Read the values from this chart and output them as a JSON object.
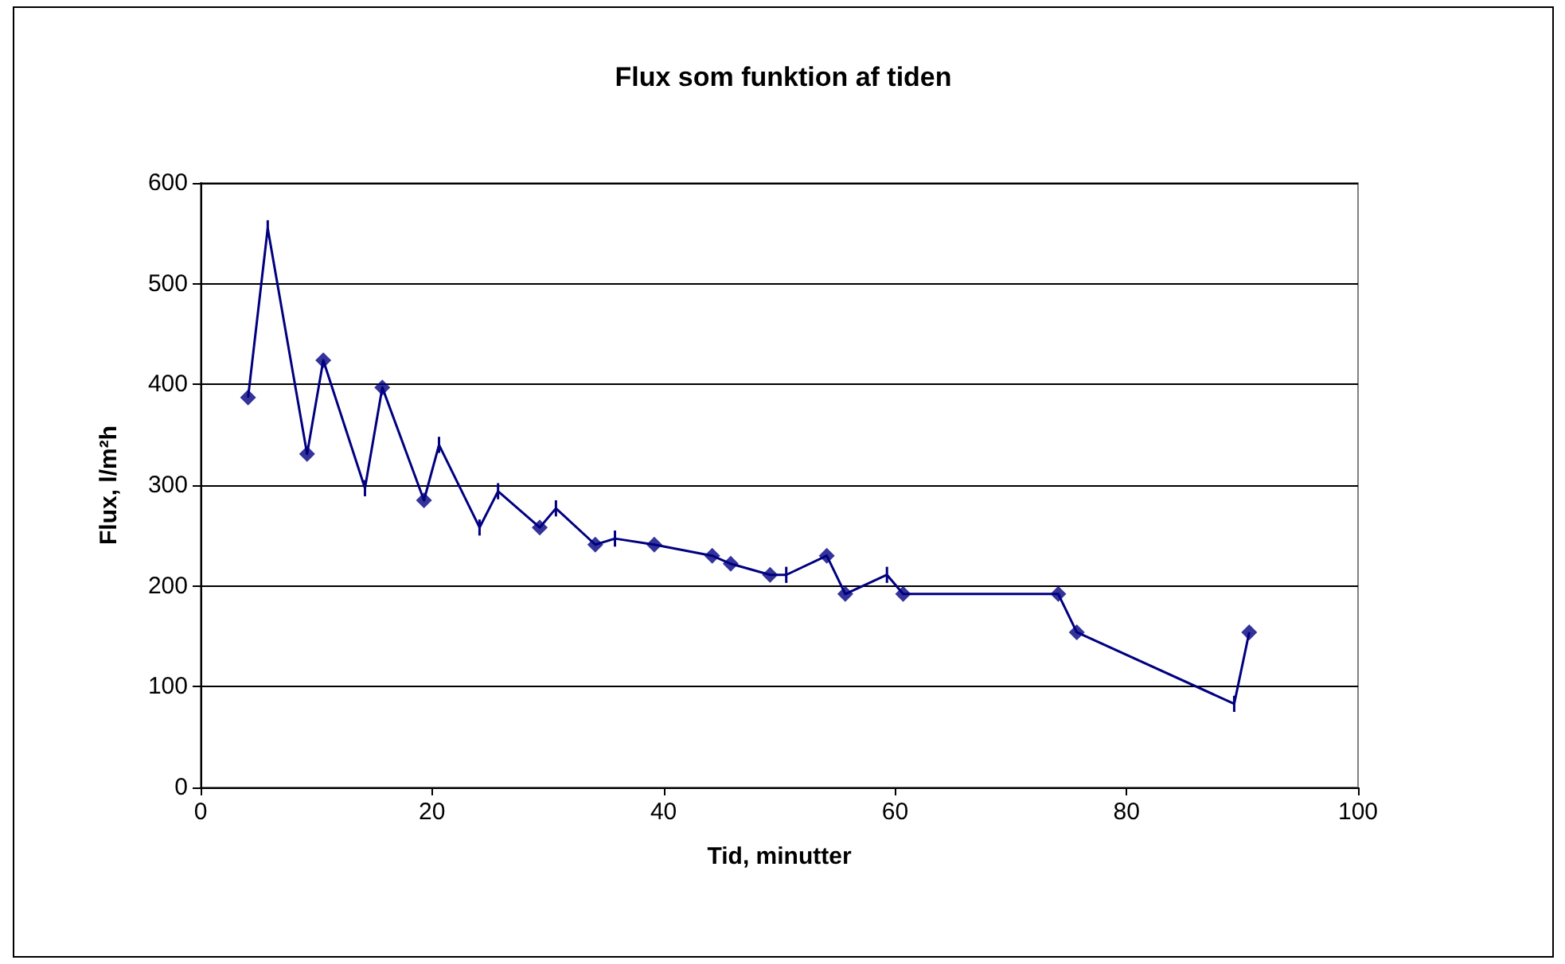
{
  "chart_data": {
    "type": "line",
    "title": "Flux som funktion af tiden",
    "xlabel": "Tid, minutter",
    "ylabel": "Flux, l/m²h",
    "xlim": [
      0,
      100
    ],
    "xticks": [
      0,
      20,
      40,
      60,
      80,
      100
    ],
    "ylim": [
      0,
      600
    ],
    "yticks": [
      0,
      100,
      200,
      300,
      400,
      500,
      600
    ],
    "grid": "y",
    "series": [
      {
        "color": "#000080",
        "marker": "none",
        "line_style": "solid",
        "x": [
          4.1,
          5.8,
          9.2,
          10.6,
          14.2,
          15.7,
          19.3,
          20.6,
          24.1,
          25.7,
          29.3,
          30.7,
          34.1,
          35.8,
          39.2,
          44.2,
          45.8,
          49.2,
          50.6,
          54.1,
          55.7,
          59.3,
          60.7,
          74.1,
          75.7,
          89.3,
          90.6
        ],
        "values": [
          387,
          555,
          331,
          424,
          297,
          397,
          285,
          340,
          258,
          294,
          258,
          277,
          241,
          247,
          241,
          230,
          222,
          211,
          211,
          230,
          192,
          211,
          192,
          192,
          154,
          83,
          154
        ],
        "errors": [
          null,
          8,
          null,
          null,
          8,
          null,
          null,
          8,
          8,
          8,
          null,
          8,
          null,
          8,
          null,
          null,
          null,
          null,
          8,
          null,
          null,
          8,
          null,
          null,
          null,
          8,
          null
        ]
      },
      {
        "type": "scatter",
        "color": "#000080",
        "marker": "diamond",
        "x": [
          4.1,
          9.2,
          10.6,
          15.7,
          19.3,
          29.3,
          34.1,
          39.2,
          44.2,
          45.8,
          49.2,
          54.1,
          55.7,
          60.7,
          74.1,
          75.7,
          90.6
        ],
        "values": [
          387,
          331,
          424,
          397,
          285,
          258,
          241,
          241,
          230,
          222,
          211,
          230,
          192,
          192,
          192,
          154,
          154
        ]
      }
    ]
  }
}
